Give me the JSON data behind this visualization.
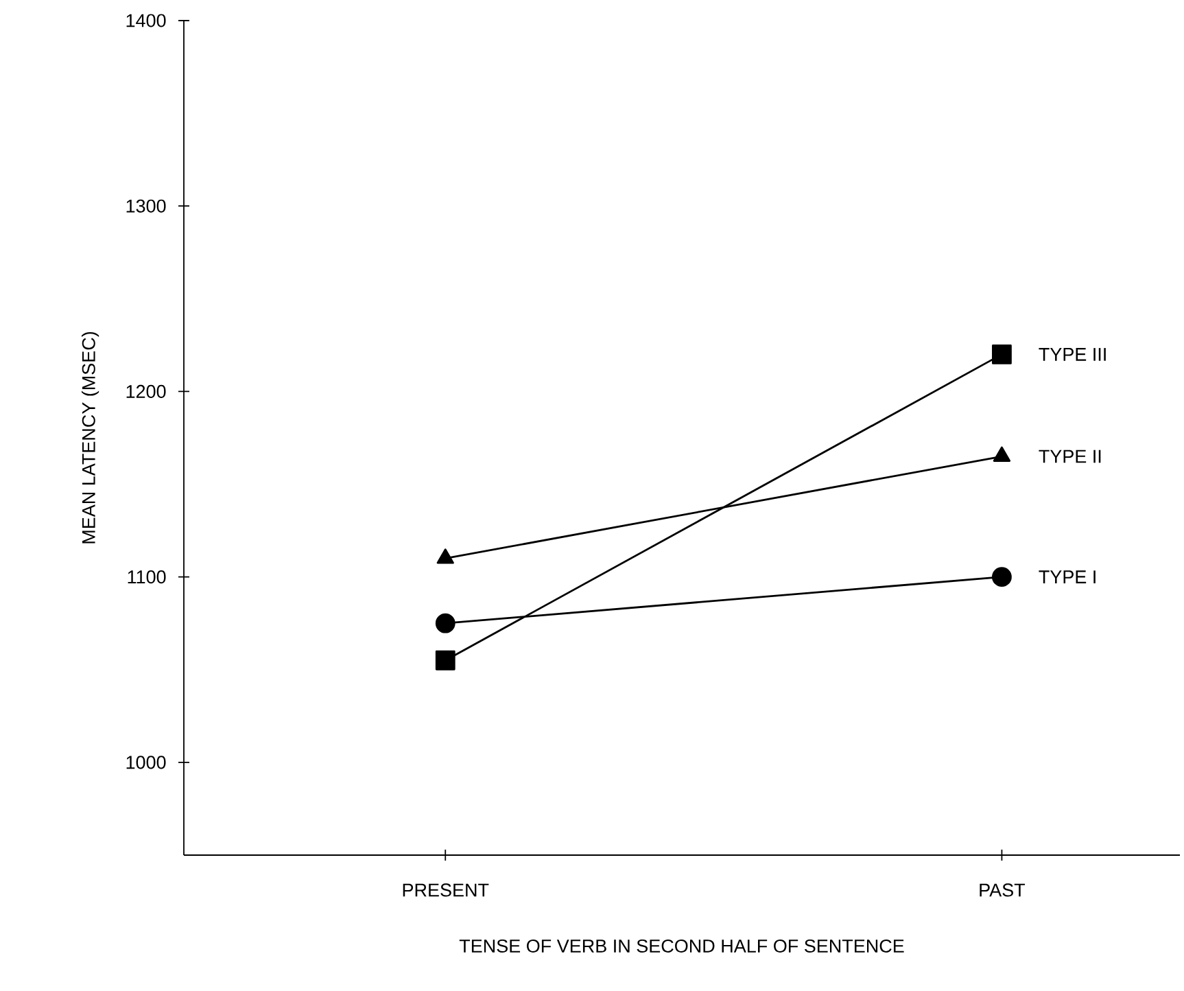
{
  "chart_data": {
    "type": "line",
    "xlabel": "TENSE OF VERB IN SECOND HALF OF SENTENCE",
    "ylabel": "MEAN LATENCY (MSEC)",
    "categories": [
      "PRESENT",
      "PAST"
    ],
    "series": [
      {
        "name": "TYPE I",
        "color": "#000000",
        "marker": "circle",
        "values": [
          1075,
          1100
        ]
      },
      {
        "name": "TYPE II",
        "color": "#000000",
        "marker": "triangle",
        "values": [
          1110,
          1165
        ]
      },
      {
        "name": "TYPE III",
        "color": "#000000",
        "marker": "square",
        "values": [
          1055,
          1220
        ]
      }
    ],
    "ylim": [
      950,
      1400
    ],
    "yticks": [
      1000,
      1100,
      1200,
      1300,
      1400
    ],
    "grid": false,
    "legend": false,
    "line_style": "solid"
  }
}
